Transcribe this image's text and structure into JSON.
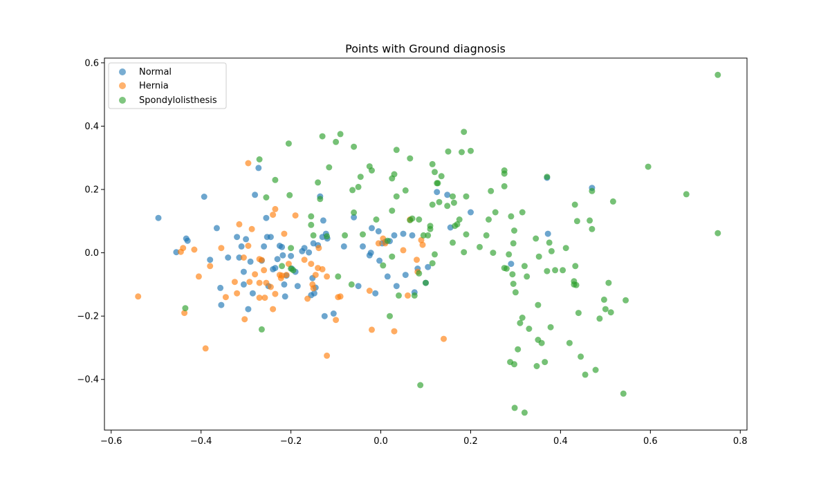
{
  "chart_data": {
    "type": "scatter",
    "title": "Points with Ground diagnosis",
    "xlabel": "",
    "ylabel": "",
    "xlim": [
      -0.615,
      0.815
    ],
    "ylim": [
      -0.56,
      0.615
    ],
    "xticks": [
      -0.6,
      -0.4,
      -0.2,
      0.0,
      0.2,
      0.4,
      0.6,
      0.8
    ],
    "xtick_labels": [
      "−0.6",
      "−0.4",
      "−0.2",
      "0.0",
      "0.2",
      "0.4",
      "0.6",
      "0.8"
    ],
    "yticks": [
      -0.4,
      -0.2,
      0.0,
      0.2,
      0.4,
      0.6
    ],
    "ytick_labels": [
      "−0.4",
      "−0.2",
      "0.0",
      "0.2",
      "0.4",
      "0.6"
    ],
    "grid": false,
    "legend_position": "top-left",
    "series": [
      {
        "name": "Normal",
        "color": "#1f77b4",
        "points": [
          [
            -0.495,
            0.11
          ],
          [
            -0.455,
            0.002
          ],
          [
            -0.433,
            0.045
          ],
          [
            -0.43,
            0.038
          ],
          [
            -0.393,
            0.177
          ],
          [
            -0.38,
            -0.022
          ],
          [
            -0.365,
            0.078
          ],
          [
            -0.357,
            -0.111
          ],
          [
            -0.355,
            -0.165
          ],
          [
            -0.34,
            -0.015
          ],
          [
            -0.32,
            0.05
          ],
          [
            -0.315,
            -0.015
          ],
          [
            -0.31,
            0.02
          ],
          [
            -0.305,
            -0.06
          ],
          [
            -0.305,
            -0.1
          ],
          [
            -0.3,
            0.043
          ],
          [
            -0.295,
            -0.178
          ],
          [
            -0.29,
            -0.028
          ],
          [
            -0.285,
            -0.128
          ],
          [
            -0.28,
            0.183
          ],
          [
            -0.272,
            0.268
          ],
          [
            -0.265,
            -0.025
          ],
          [
            -0.26,
            0.02
          ],
          [
            -0.255,
            0.11
          ],
          [
            -0.253,
            0.05
          ],
          [
            -0.25,
            -0.105
          ],
          [
            -0.245,
            0.05
          ],
          [
            -0.24,
            -0.052
          ],
          [
            -0.235,
            -0.048
          ],
          [
            -0.23,
            -0.02
          ],
          [
            -0.225,
            0.022
          ],
          [
            -0.22,
            0.018
          ],
          [
            -0.218,
            -0.008
          ],
          [
            -0.215,
            -0.1
          ],
          [
            -0.213,
            -0.138
          ],
          [
            -0.21,
            -0.072
          ],
          [
            -0.2,
            -0.01
          ],
          [
            -0.198,
            -0.05
          ],
          [
            -0.19,
            -0.06
          ],
          [
            -0.185,
            -0.105
          ],
          [
            -0.175,
            0.005
          ],
          [
            -0.17,
            0.015
          ],
          [
            -0.16,
            0.001
          ],
          [
            -0.155,
            -0.134
          ],
          [
            -0.152,
            -0.08
          ],
          [
            -0.15,
            0.03
          ],
          [
            -0.148,
            -0.128
          ],
          [
            -0.145,
            -0.11
          ],
          [
            -0.14,
            0.024
          ],
          [
            -0.135,
            0.178
          ],
          [
            -0.13,
            0.05
          ],
          [
            -0.128,
            0.102
          ],
          [
            -0.125,
            -0.2
          ],
          [
            -0.122,
            0.06
          ],
          [
            -0.119,
            0.045
          ],
          [
            -0.105,
            -0.192
          ],
          [
            -0.082,
            0.02
          ],
          [
            -0.06,
            0.112
          ],
          [
            -0.05,
            -0.105
          ],
          [
            -0.04,
            0.02
          ],
          [
            -0.025,
            -0.008
          ],
          [
            -0.022,
            0.0
          ],
          [
            -0.02,
            0.078
          ],
          [
            -0.012,
            -0.128
          ],
          [
            -0.005,
            0.068
          ],
          [
            -0.003,
            -0.025
          ],
          [
            0.003,
            0.03
          ],
          [
            0.01,
            0.035
          ],
          [
            0.015,
            -0.075
          ],
          [
            0.02,
            0.037
          ],
          [
            0.03,
            0.055
          ],
          [
            0.035,
            -0.105
          ],
          [
            0.05,
            0.06
          ],
          [
            0.055,
            -0.07
          ],
          [
            0.07,
            0.055
          ],
          [
            0.075,
            -0.125
          ],
          [
            0.082,
            -0.05
          ],
          [
            0.1,
            -0.095
          ],
          [
            0.105,
            -0.045
          ],
          [
            0.125,
            0.192
          ],
          [
            0.148,
            0.183
          ],
          [
            0.155,
            0.08
          ],
          [
            0.2,
            0.128
          ],
          [
            0.29,
            -0.035
          ],
          [
            0.372,
            0.06
          ],
          [
            0.37,
            0.237
          ],
          [
            0.47,
            0.205
          ]
        ]
      },
      {
        "name": "Hernia",
        "color": "#ff7f0e",
        "points": [
          [
            -0.54,
            -0.138
          ],
          [
            -0.445,
            0.003
          ],
          [
            -0.44,
            0.015
          ],
          [
            -0.437,
            -0.19
          ],
          [
            -0.415,
            0.01
          ],
          [
            -0.405,
            -0.075
          ],
          [
            -0.39,
            -0.302
          ],
          [
            -0.38,
            -0.042
          ],
          [
            -0.355,
            0.015
          ],
          [
            -0.345,
            -0.14
          ],
          [
            -0.325,
            -0.092
          ],
          [
            -0.32,
            -0.128
          ],
          [
            -0.315,
            0.09
          ],
          [
            -0.305,
            -0.015
          ],
          [
            -0.303,
            -0.21
          ],
          [
            -0.295,
            0.022
          ],
          [
            -0.295,
            0.283
          ],
          [
            -0.292,
            -0.092
          ],
          [
            -0.287,
            0.075
          ],
          [
            -0.28,
            -0.068
          ],
          [
            -0.27,
            -0.02
          ],
          [
            -0.27,
            -0.095
          ],
          [
            -0.27,
            -0.142
          ],
          [
            -0.265,
            -0.023
          ],
          [
            -0.26,
            -0.055
          ],
          [
            -0.258,
            -0.142
          ],
          [
            -0.255,
            -0.095
          ],
          [
            -0.245,
            -0.108
          ],
          [
            -0.24,
            0.12
          ],
          [
            -0.24,
            -0.178
          ],
          [
            -0.235,
            0.138
          ],
          [
            -0.235,
            -0.13
          ],
          [
            -0.225,
            -0.07
          ],
          [
            -0.222,
            -0.08
          ],
          [
            -0.22,
            -0.072
          ],
          [
            -0.215,
            0.06
          ],
          [
            -0.21,
            -0.07
          ],
          [
            -0.205,
            -0.035
          ],
          [
            -0.19,
            0.118
          ],
          [
            -0.17,
            -0.022
          ],
          [
            -0.163,
            -0.145
          ],
          [
            -0.155,
            -0.035
          ],
          [
            -0.152,
            -0.1
          ],
          [
            -0.15,
            -0.112
          ],
          [
            -0.145,
            -0.07
          ],
          [
            -0.14,
            -0.048
          ],
          [
            -0.138,
            0.015
          ],
          [
            -0.13,
            -0.052
          ],
          [
            -0.12,
            -0.075
          ],
          [
            -0.12,
            -0.325
          ],
          [
            -0.1,
            -0.212
          ],
          [
            -0.095,
            -0.14
          ],
          [
            -0.09,
            -0.138
          ],
          [
            -0.025,
            -0.12
          ],
          [
            -0.02,
            -0.243
          ],
          [
            -0.005,
            0.03
          ],
          [
            0.005,
            0.045
          ],
          [
            0.01,
            0.03
          ],
          [
            0.03,
            -0.248
          ],
          [
            0.05,
            0.008
          ],
          [
            0.06,
            -0.135
          ],
          [
            0.065,
            0.105
          ],
          [
            0.08,
            -0.022
          ],
          [
            0.082,
            -0.06
          ],
          [
            0.09,
            0.04
          ],
          [
            0.093,
            0.025
          ],
          [
            0.14,
            -0.272
          ]
        ]
      },
      {
        "name": "Spondylolisthesis",
        "color": "#2ca02c",
        "points": [
          [
            -0.435,
            -0.175
          ],
          [
            -0.27,
            0.295
          ],
          [
            -0.265,
            -0.242
          ],
          [
            -0.255,
            0.175
          ],
          [
            -0.235,
            0.23
          ],
          [
            -0.22,
            -0.042
          ],
          [
            -0.205,
            0.345
          ],
          [
            -0.203,
            0.182
          ],
          [
            -0.2,
            0.015
          ],
          [
            -0.2,
            -0.05
          ],
          [
            -0.195,
            -0.055
          ],
          [
            -0.155,
            0.115
          ],
          [
            -0.155,
            0.088
          ],
          [
            -0.15,
            0.055
          ],
          [
            -0.14,
            0.222
          ],
          [
            -0.135,
            0.17
          ],
          [
            -0.13,
            0.368
          ],
          [
            -0.12,
            0.052
          ],
          [
            -0.115,
            0.27
          ],
          [
            -0.1,
            0.35
          ],
          [
            -0.095,
            -0.075
          ],
          [
            -0.09,
            0.375
          ],
          [
            -0.08,
            0.055
          ],
          [
            -0.065,
            -0.1
          ],
          [
            -0.063,
            0.198
          ],
          [
            -0.06,
            0.335
          ],
          [
            -0.06,
            0.127
          ],
          [
            -0.05,
            0.208
          ],
          [
            -0.045,
            0.24
          ],
          [
            -0.04,
            0.058
          ],
          [
            -0.025,
            0.273
          ],
          [
            -0.02,
            0.26
          ],
          [
            -0.01,
            0.105
          ],
          [
            0.005,
            -0.04
          ],
          [
            0.015,
            0.038
          ],
          [
            0.02,
            -0.2
          ],
          [
            0.025,
            0.235
          ],
          [
            0.025,
            0.133
          ],
          [
            0.025,
            -0.012
          ],
          [
            0.03,
            0.248
          ],
          [
            0.035,
            0.325
          ],
          [
            0.035,
            0.178
          ],
          [
            0.04,
            -0.135
          ],
          [
            0.055,
            0.197
          ],
          [
            0.065,
            0.298
          ],
          [
            0.065,
            0.103
          ],
          [
            0.07,
            0.108
          ],
          [
            0.075,
            -0.135
          ],
          [
            0.085,
            0.105
          ],
          [
            0.085,
            -0.065
          ],
          [
            0.088,
            -0.418
          ],
          [
            0.095,
            0.055
          ],
          [
            0.1,
            -0.095
          ],
          [
            0.105,
            0.055
          ],
          [
            0.11,
            0.085
          ],
          [
            0.11,
            0.075
          ],
          [
            0.115,
            0.152
          ],
          [
            0.115,
            0.28
          ],
          [
            0.115,
            -0.033
          ],
          [
            0.12,
            0.255
          ],
          [
            0.12,
            -0.005
          ],
          [
            0.125,
            0.22
          ],
          [
            0.127,
            0.22
          ],
          [
            0.13,
            0.16
          ],
          [
            0.135,
            0.242
          ],
          [
            0.148,
            0.148
          ],
          [
            0.15,
            0.32
          ],
          [
            0.16,
            0.032
          ],
          [
            0.16,
            0.178
          ],
          [
            0.163,
            0.158
          ],
          [
            0.165,
            0.085
          ],
          [
            0.17,
            0.09
          ],
          [
            0.175,
            0.105
          ],
          [
            0.18,
            0.318
          ],
          [
            0.185,
            0.382
          ],
          [
            0.185,
            0.002
          ],
          [
            0.19,
            0.058
          ],
          [
            0.19,
            0.178
          ],
          [
            0.2,
            0.322
          ],
          [
            0.22,
            0.018
          ],
          [
            0.235,
            0.055
          ],
          [
            0.24,
            0.105
          ],
          [
            0.245,
            0.195
          ],
          [
            0.25,
            0.0
          ],
          [
            0.255,
            0.128
          ],
          [
            0.275,
            0.26
          ],
          [
            0.275,
            0.25
          ],
          [
            0.275,
            0.21
          ],
          [
            0.275,
            -0.048
          ],
          [
            0.28,
            -0.05
          ],
          [
            0.285,
            -0.005
          ],
          [
            0.288,
            -0.345
          ],
          [
            0.29,
            0.115
          ],
          [
            0.293,
            -0.068
          ],
          [
            0.295,
            0.03
          ],
          [
            0.295,
            -0.098
          ],
          [
            0.297,
            0.07
          ],
          [
            0.297,
            -0.352
          ],
          [
            0.298,
            -0.49
          ],
          [
            0.3,
            -0.125
          ],
          [
            0.305,
            -0.305
          ],
          [
            0.31,
            -0.222
          ],
          [
            0.315,
            -0.205
          ],
          [
            0.315,
            0.128
          ],
          [
            0.32,
            -0.042
          ],
          [
            0.32,
            -0.505
          ],
          [
            0.325,
            -0.075
          ],
          [
            0.33,
            -0.24
          ],
          [
            0.345,
            0.045
          ],
          [
            0.347,
            -0.358
          ],
          [
            0.35,
            -0.165
          ],
          [
            0.35,
            -0.275
          ],
          [
            0.352,
            -0.012
          ],
          [
            0.358,
            -0.285
          ],
          [
            0.365,
            -0.345
          ],
          [
            0.37,
            -0.058
          ],
          [
            0.37,
            0.24
          ],
          [
            0.375,
            0.032
          ],
          [
            0.378,
            -0.235
          ],
          [
            0.38,
            0.005
          ],
          [
            0.388,
            -0.055
          ],
          [
            0.405,
            -0.055
          ],
          [
            0.412,
            0.015
          ],
          [
            0.42,
            -0.285
          ],
          [
            0.43,
            -0.09
          ],
          [
            0.43,
            -0.1
          ],
          [
            0.432,
            0.152
          ],
          [
            0.433,
            -0.042
          ],
          [
            0.435,
            -0.102
          ],
          [
            0.437,
            0.1
          ],
          [
            0.44,
            -0.19
          ],
          [
            0.445,
            -0.328
          ],
          [
            0.455,
            -0.385
          ],
          [
            0.465,
            0.102
          ],
          [
            0.47,
            0.195
          ],
          [
            0.47,
            0.075
          ],
          [
            0.478,
            -0.37
          ],
          [
            0.487,
            -0.208
          ],
          [
            0.497,
            -0.148
          ],
          [
            0.5,
            -0.178
          ],
          [
            0.507,
            -0.095
          ],
          [
            0.512,
            -0.188
          ],
          [
            0.517,
            0.162
          ],
          [
            0.54,
            -0.445
          ],
          [
            0.545,
            -0.15
          ],
          [
            0.595,
            0.272
          ],
          [
            0.68,
            0.185
          ],
          [
            0.75,
            0.062
          ],
          [
            0.75,
            0.562
          ]
        ]
      }
    ]
  }
}
